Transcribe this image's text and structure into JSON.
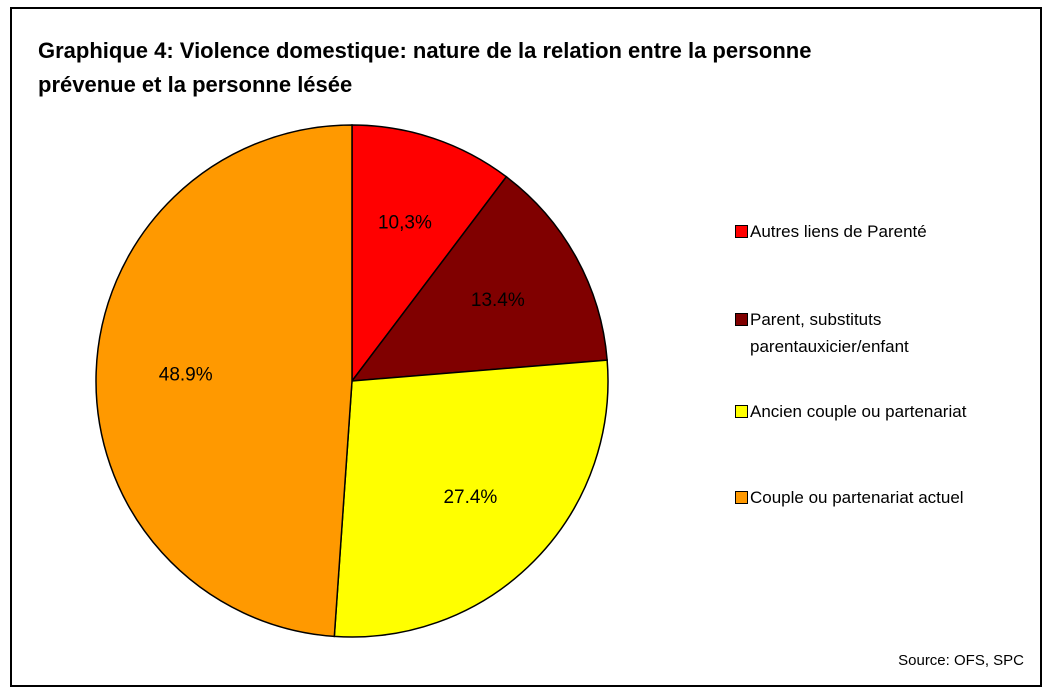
{
  "chart_data": {
    "type": "pie",
    "title": "Graphique 4: Violence domestique: nature de la relation entre la personne prévenue et la personne lésée",
    "categories": [
      "Autres liens de Parenté",
      "Parent, substituts parentauxicier/enfant",
      "Ancien couple ou partenariat",
      "Couple ou partenariat actuel"
    ],
    "values": [
      10.3,
      13.4,
      27.4,
      48.9
    ],
    "value_labels": [
      "10,3%",
      "13.4%",
      "27.4%",
      "48.9%"
    ],
    "colors": [
      "#ff0000",
      "#800000",
      "#ffff00",
      "#ff9900"
    ],
    "legend": "right",
    "source": "Source: OFS, SPC"
  }
}
